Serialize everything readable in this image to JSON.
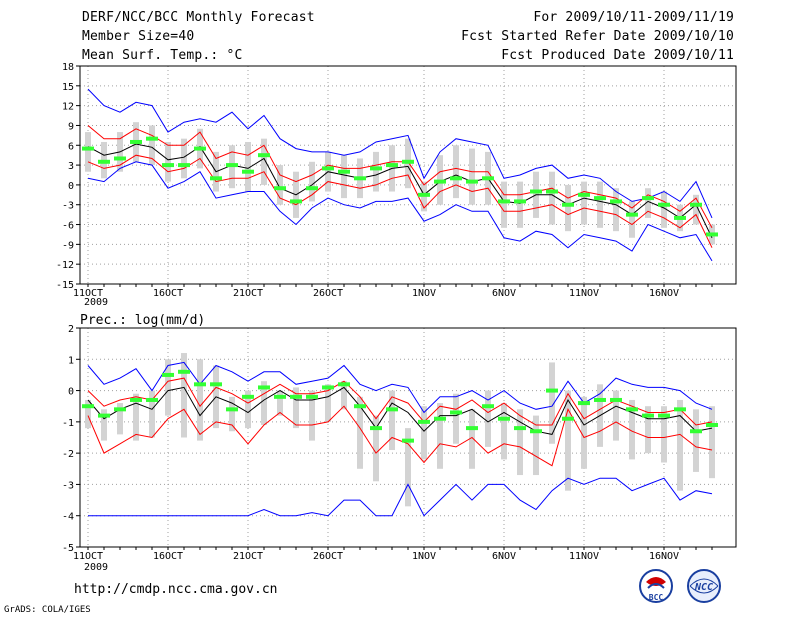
{
  "header": {
    "title": "DERF/NCC/BCC Monthly Forecast",
    "member_size": "Member Size=40",
    "variable": "Mean Surf. Temp.: °C",
    "period": "For 2009/10/11-2009/11/19",
    "fcst_started": "Fcst Started Refer Date 2009/10/10",
    "fcst_produced": "Fcst Produced Date 2009/10/11"
  },
  "footer": {
    "url": "http://cmdp.ncc.cma.gov.cn",
    "grads": "GrADS: COLA/IGES",
    "logo_bcc": "BCC",
    "logo_ncc": "NCC"
  },
  "colors": {
    "ensemble_mean": "#000000",
    "inner_spread": "#ff0000",
    "outer_spread": "#0000ff",
    "median": "#33ff33",
    "range_bar": "#d3d3d3",
    "grid": "#a0a0a0"
  },
  "x_ticks": [
    "11OCT",
    "16OCT",
    "21OCT",
    "26OCT",
    "1NOV",
    "6NOV",
    "11NOV",
    "16NOV"
  ],
  "x_tick_days": [
    1,
    6,
    11,
    16,
    22,
    27,
    32,
    37
  ],
  "year_label": "2009",
  "chart_data": [
    {
      "type": "line",
      "title": "Mean Surf. Temp.: °C",
      "xlabel": "",
      "ylabel": "",
      "ylim": [
        -15,
        18
      ],
      "yticks": [
        18,
        15,
        12,
        9,
        6,
        3,
        0,
        -3,
        -6,
        -9,
        -12,
        -15
      ],
      "x": [
        1,
        2,
        3,
        4,
        5,
        6,
        7,
        8,
        9,
        10,
        11,
        12,
        13,
        14,
        15,
        16,
        17,
        18,
        19,
        20,
        21,
        22,
        23,
        24,
        25,
        26,
        27,
        28,
        29,
        30,
        31,
        32,
        33,
        34,
        35,
        36,
        37,
        38,
        39,
        40
      ],
      "series": [
        {
          "name": "ensemble mean",
          "values": [
            5.8,
            4.5,
            5.0,
            6.2,
            5.7,
            3.8,
            4.2,
            5.8,
            2.0,
            3.0,
            2.5,
            4.0,
            -0.5,
            -1.5,
            0.0,
            2.0,
            1.5,
            1.0,
            1.5,
            2.5,
            2.8,
            -1.5,
            0.5,
            1.5,
            0.5,
            1.0,
            -2.5,
            -2.8,
            -1.5,
            -1.5,
            -3.0,
            -2.0,
            -2.5,
            -3.0,
            -4.5,
            -2.5,
            -3.5,
            -5.0,
            -3.0,
            -8.0
          ]
        },
        {
          "name": "upper red",
          "values": [
            9.0,
            7.0,
            7.0,
            8.5,
            7.5,
            6.0,
            6.0,
            8.0,
            4.0,
            5.0,
            4.5,
            6.0,
            1.5,
            0.5,
            1.5,
            3.0,
            2.5,
            2.5,
            3.0,
            3.5,
            3.5,
            0.0,
            2.0,
            2.5,
            2.0,
            2.0,
            -1.5,
            -1.5,
            -1.0,
            -0.5,
            -2.0,
            -1.0,
            -1.5,
            -2.0,
            -3.5,
            -1.5,
            -2.5,
            -4.0,
            -2.0,
            -6.5
          ]
        },
        {
          "name": "lower red",
          "values": [
            3.5,
            2.5,
            3.0,
            4.5,
            4.0,
            2.0,
            2.5,
            4.0,
            0.5,
            1.0,
            1.0,
            2.0,
            -2.0,
            -3.0,
            -1.5,
            0.5,
            0.0,
            -0.5,
            0.0,
            1.0,
            1.5,
            -3.5,
            -1.0,
            0.0,
            -1.0,
            -0.5,
            -4.0,
            -4.0,
            -3.5,
            -3.0,
            -4.5,
            -3.5,
            -4.0,
            -4.5,
            -6.0,
            -4.0,
            -5.0,
            -6.5,
            -4.5,
            -9.5
          ]
        },
        {
          "name": "upper blue",
          "values": [
            14.5,
            12.0,
            11.0,
            12.5,
            12.0,
            8.0,
            9.5,
            10.0,
            9.5,
            11.0,
            8.5,
            10.5,
            7.0,
            5.5,
            5.0,
            5.0,
            4.5,
            5.0,
            6.5,
            7.0,
            7.5,
            1.0,
            5.0,
            7.0,
            6.5,
            6.0,
            1.0,
            1.5,
            2.5,
            3.0,
            1.0,
            1.5,
            1.0,
            -1.0,
            -2.5,
            -2.0,
            -1.0,
            -2.5,
            0.5,
            -5.0
          ]
        },
        {
          "name": "lower blue",
          "values": [
            1.0,
            0.5,
            2.5,
            3.5,
            3.0,
            -0.5,
            0.5,
            2.0,
            -2.0,
            -1.5,
            -1.0,
            -1.0,
            -4.0,
            -6.0,
            -3.5,
            -2.0,
            -3.0,
            -3.5,
            -2.5,
            -2.5,
            -2.0,
            -5.5,
            -4.5,
            -3.0,
            -4.0,
            -4.0,
            -8.0,
            -8.5,
            -7.0,
            -7.5,
            -9.5,
            -7.5,
            -8.0,
            -8.5,
            -10.0,
            -6.0,
            -7.0,
            -8.0,
            -7.5,
            -11.5
          ]
        },
        {
          "name": "median",
          "values": [
            5.5,
            3.5,
            4.0,
            6.5,
            7.0,
            3.0,
            3.0,
            5.5,
            1.0,
            3.0,
            2.0,
            4.5,
            -0.5,
            -2.5,
            -0.5,
            2.5,
            2.0,
            1.0,
            2.5,
            3.0,
            3.5,
            -1.5,
            0.5,
            1.0,
            0.5,
            1.0,
            -2.5,
            -2.5,
            -1.0,
            -1.0,
            -3.0,
            -1.5,
            -2.0,
            -2.5,
            -4.5,
            -2.0,
            -3.0,
            -5.0,
            -3.0,
            -7.5
          ]
        },
        {
          "name": "range high",
          "values": [
            8.0,
            6.5,
            8.0,
            9.5,
            9.0,
            6.5,
            7.0,
            8.5,
            5.0,
            6.0,
            6.5,
            7.0,
            3.0,
            2.0,
            3.5,
            5.0,
            4.5,
            4.0,
            5.0,
            6.0,
            7.0,
            0.5,
            4.5,
            6.0,
            5.5,
            5.0,
            0.5,
            0.5,
            2.0,
            2.0,
            0.0,
            0.5,
            0.5,
            -0.5,
            -2.5,
            -0.5,
            -1.0,
            -3.0,
            -1.5,
            -6.0
          ]
        },
        {
          "name": "range low",
          "values": [
            2.0,
            1.0,
            2.0,
            3.5,
            3.0,
            0.5,
            1.0,
            2.5,
            -1.0,
            -0.5,
            -1.0,
            0.0,
            -3.0,
            -5.0,
            -2.5,
            -1.0,
            -2.0,
            -2.0,
            -1.0,
            -1.0,
            -0.5,
            -4.0,
            -3.0,
            -2.0,
            -3.0,
            -3.0,
            -6.5,
            -6.5,
            -5.0,
            -6.0,
            -7.0,
            -6.0,
            -6.5,
            -7.0,
            -8.0,
            -5.0,
            -6.5,
            -7.0,
            -6.0,
            -9.0
          ]
        }
      ]
    },
    {
      "type": "line",
      "title": "Prec.: log(mm/d)",
      "xlabel": "",
      "ylabel": "",
      "ylim": [
        -5,
        2
      ],
      "yticks": [
        2,
        1,
        0,
        -1,
        -2,
        -3,
        -4,
        -5
      ],
      "x": [
        1,
        2,
        3,
        4,
        5,
        6,
        7,
        8,
        9,
        10,
        11,
        12,
        13,
        14,
        15,
        16,
        17,
        18,
        19,
        20,
        21,
        22,
        23,
        24,
        25,
        26,
        27,
        28,
        29,
        30,
        31,
        32,
        33,
        34,
        35,
        36,
        37,
        38,
        39,
        40
      ],
      "series": [
        {
          "name": "ensemble mean",
          "values": [
            -0.3,
            -0.9,
            -0.6,
            -0.4,
            -0.6,
            0.0,
            0.1,
            -0.8,
            -0.2,
            -0.4,
            -0.7,
            -0.3,
            0.0,
            -0.3,
            -0.3,
            -0.2,
            0.1,
            -0.5,
            -1.2,
            -0.4,
            -0.7,
            -1.3,
            -0.8,
            -0.8,
            -0.6,
            -1.0,
            -0.7,
            -1.0,
            -1.3,
            -1.4,
            -0.3,
            -1.1,
            -0.8,
            -0.5,
            -0.7,
            -0.9,
            -0.9,
            -0.8,
            -1.3,
            -1.2
          ]
        },
        {
          "name": "upper red",
          "values": [
            0.0,
            -0.5,
            -0.3,
            -0.2,
            -0.3,
            0.3,
            0.4,
            -0.5,
            0.1,
            -0.1,
            -0.4,
            -0.1,
            0.2,
            -0.1,
            -0.1,
            0.0,
            0.3,
            -0.2,
            -0.9,
            -0.2,
            -0.4,
            -1.0,
            -0.5,
            -0.6,
            -0.3,
            -0.7,
            -0.4,
            -0.8,
            -1.1,
            -1.1,
            -0.1,
            -0.9,
            -0.6,
            -0.3,
            -0.5,
            -0.7,
            -0.7,
            -0.6,
            -1.1,
            -1.0
          ]
        },
        {
          "name": "lower red",
          "values": [
            -0.8,
            -2.0,
            -1.7,
            -1.4,
            -1.5,
            -0.9,
            -0.6,
            -1.4,
            -1.0,
            -1.1,
            -1.7,
            -1.1,
            -0.7,
            -1.1,
            -1.1,
            -1.0,
            -0.5,
            -1.2,
            -2.0,
            -1.5,
            -1.7,
            -2.3,
            -1.7,
            -1.8,
            -1.5,
            -2.0,
            -1.7,
            -1.8,
            -2.1,
            -2.4,
            -0.6,
            -1.5,
            -1.3,
            -1.0,
            -1.3,
            -1.5,
            -1.5,
            -1.4,
            -1.8,
            -1.9
          ]
        },
        {
          "name": "upper blue",
          "values": [
            0.8,
            0.2,
            0.4,
            0.7,
            0.0,
            0.8,
            0.9,
            0.2,
            0.8,
            0.6,
            0.3,
            0.6,
            0.6,
            0.2,
            0.3,
            0.4,
            0.8,
            0.2,
            0.0,
            0.2,
            0.1,
            -0.7,
            -0.2,
            -0.2,
            0.0,
            -0.3,
            0.0,
            -0.4,
            -0.6,
            -0.5,
            0.3,
            -0.4,
            -0.1,
            0.4,
            0.2,
            0.1,
            0.1,
            0.0,
            -0.4,
            -0.6
          ]
        },
        {
          "name": "lower blue",
          "values": [
            -4.0,
            -4.0,
            -4.0,
            -4.0,
            -4.0,
            -4.0,
            -4.0,
            -4.0,
            -4.0,
            -4.0,
            -4.0,
            -3.8,
            -4.0,
            -4.0,
            -3.9,
            -4.0,
            -3.5,
            -3.5,
            -4.0,
            -4.0,
            -3.0,
            -4.0,
            -3.5,
            -3.0,
            -3.5,
            -3.0,
            -3.0,
            -3.5,
            -3.8,
            -3.2,
            -2.8,
            -3.0,
            -2.8,
            -2.8,
            -3.2,
            -3.0,
            -2.8,
            -3.5,
            -3.2,
            -3.3
          ]
        },
        {
          "name": "median",
          "values": [
            -0.5,
            -0.8,
            -0.6,
            -0.3,
            -0.3,
            0.5,
            0.6,
            0.2,
            0.2,
            -0.6,
            -0.2,
            0.1,
            -0.2,
            -0.2,
            -0.2,
            0.1,
            0.2,
            -0.5,
            -1.2,
            -0.6,
            -1.6,
            -1.0,
            -0.9,
            -0.7,
            -1.2,
            -0.5,
            -0.9,
            -1.2,
            -1.3,
            0.0,
            -0.9,
            -0.4,
            -0.3,
            -0.3,
            -0.6,
            -0.8,
            -0.8,
            -0.6,
            -1.3,
            -1.1
          ]
        },
        {
          "name": "range high",
          "values": [
            -0.3,
            -0.6,
            -0.4,
            -0.1,
            0.0,
            1.0,
            1.2,
            1.0,
            0.8,
            -0.2,
            0.0,
            0.3,
            0.0,
            0.1,
            0.0,
            0.2,
            0.3,
            -0.2,
            -0.8,
            0.0,
            -1.2,
            -0.5,
            -0.4,
            -0.1,
            -0.6,
            0.0,
            -0.4,
            -0.6,
            -0.8,
            0.9,
            0.0,
            -0.2,
            0.2,
            0.0,
            -0.3,
            -0.5,
            -0.5,
            -0.3,
            -0.6,
            -0.5
          ]
        },
        {
          "name": "range low",
          "values": [
            -1.2,
            -1.6,
            -1.4,
            -1.6,
            -1.5,
            -0.8,
            -1.5,
            -1.6,
            -1.2,
            -1.3,
            -1.2,
            -1.1,
            -0.8,
            -1.2,
            -1.6,
            -1.0,
            -0.6,
            -2.5,
            -2.9,
            -1.9,
            -3.7,
            -2.2,
            -2.5,
            -1.7,
            -2.5,
            -1.8,
            -2.2,
            -2.7,
            -2.7,
            -1.7,
            -3.2,
            -2.5,
            -1.8,
            -1.6,
            -2.2,
            -2.0,
            -2.3,
            -3.2,
            -2.6,
            -2.8
          ]
        }
      ]
    }
  ]
}
